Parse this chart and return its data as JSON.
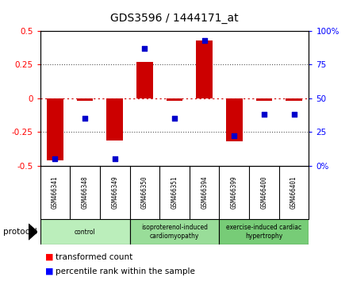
{
  "title": "GDS3596 / 1444171_at",
  "samples": [
    "GSM466341",
    "GSM466348",
    "GSM466349",
    "GSM466350",
    "GSM466351",
    "GSM466394",
    "GSM466399",
    "GSM466400",
    "GSM466401"
  ],
  "transformed_count": [
    -0.46,
    -0.02,
    -0.31,
    0.27,
    -0.02,
    0.43,
    -0.32,
    -0.02,
    -0.02
  ],
  "percentile_rank": [
    5,
    35,
    5,
    87,
    35,
    93,
    22,
    38,
    38
  ],
  "ylim_left": [
    -0.5,
    0.5
  ],
  "ylim_right": [
    0,
    100
  ],
  "yticks_left": [
    -0.5,
    -0.25,
    0,
    0.25,
    0.5
  ],
  "yticks_right": [
    0,
    25,
    50,
    75,
    100
  ],
  "ytick_labels_left": [
    "-0.5",
    "-0.25",
    "0",
    "0.25",
    "0.5"
  ],
  "ytick_labels_right": [
    "0%",
    "25",
    "50",
    "75",
    "100%"
  ],
  "groups": [
    {
      "label": "control",
      "start": 0,
      "end": 3,
      "color": "#bbeebb"
    },
    {
      "label": "isoproterenol-induced\ncardiomyopathy",
      "start": 3,
      "end": 6,
      "color": "#99dd99"
    },
    {
      "label": "exercise-induced cardiac\nhypertrophy",
      "start": 6,
      "end": 9,
      "color": "#77cc77"
    }
  ],
  "bar_color": "#cc0000",
  "scatter_color": "#0000cc",
  "zero_line_color": "#cc0000",
  "dotted_line_color": "#555555",
  "background_color": "#ffffff",
  "plot_bg_color": "#ffffff",
  "sample_box_color": "#d0d0d0",
  "legend_red_label": "transformed count",
  "legend_blue_label": "percentile rank within the sample"
}
